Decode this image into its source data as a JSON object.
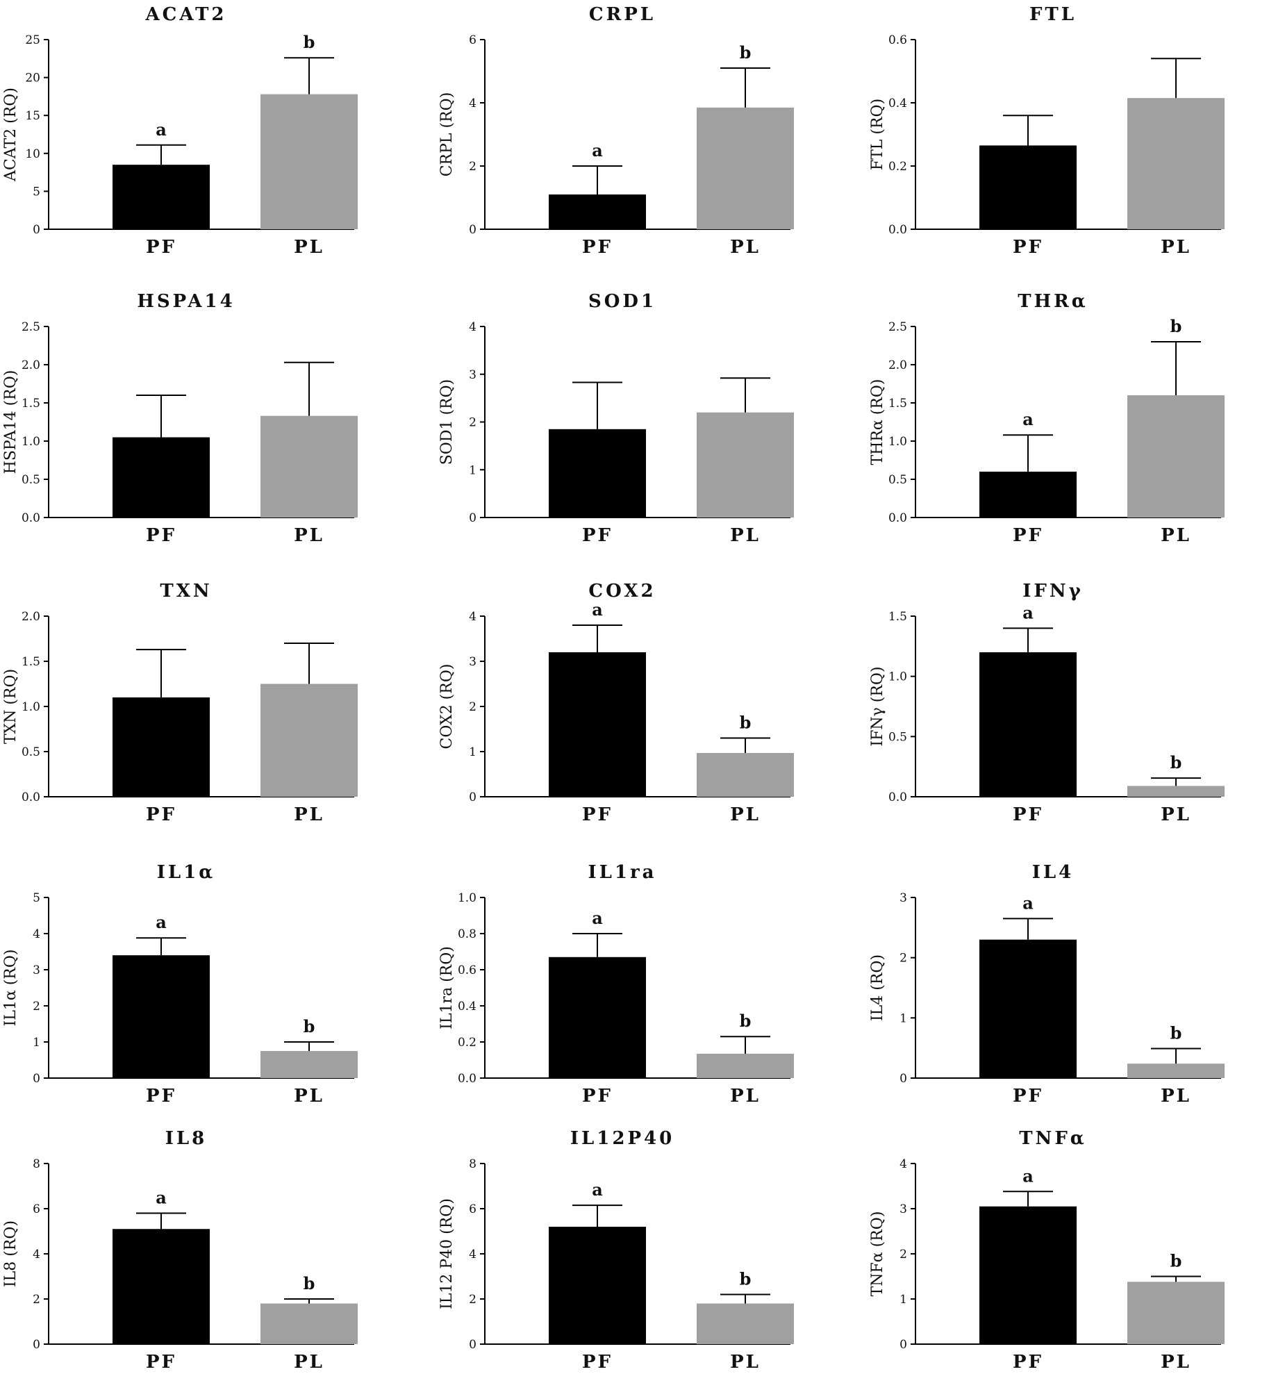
{
  "figure": {
    "colors": {
      "PF": "#000000",
      "PL": "#a0a0a0",
      "axis": "#000000"
    }
  },
  "chart_data": [
    {
      "type": "bar",
      "title": "ACAT2",
      "ylabel": "ACAT2 (RQ)",
      "categories": [
        "PF",
        "PL"
      ],
      "values": [
        8.5,
        17.8
      ],
      "errors": [
        2.6,
        4.8
      ],
      "significance": [
        "a",
        "b"
      ],
      "ylim": [
        0,
        25
      ],
      "yticks": [
        "0",
        "5",
        "10",
        "15",
        "20",
        "25"
      ]
    },
    {
      "type": "bar",
      "title": "CRPL",
      "ylabel": "CRPL (RQ)",
      "categories": [
        "PF",
        "PL"
      ],
      "values": [
        1.1,
        3.85
      ],
      "errors": [
        0.9,
        1.25
      ],
      "significance": [
        "a",
        "b"
      ],
      "ylim": [
        0,
        6
      ],
      "yticks": [
        "0",
        "2",
        "4",
        "6"
      ]
    },
    {
      "type": "bar",
      "title": "FTL",
      "ylabel": "FTL (RQ)",
      "categories": [
        "PF",
        "PL"
      ],
      "values": [
        0.265,
        0.415
      ],
      "errors": [
        0.095,
        0.125
      ],
      "significance": [
        "",
        ""
      ],
      "ylim": [
        0,
        0.6
      ],
      "yticks": [
        "0.0",
        "0.2",
        "0.4",
        "0.6"
      ]
    },
    {
      "type": "bar",
      "title": "HSPA14",
      "ylabel": "HSPA14 (RQ)",
      "categories": [
        "PF",
        "PL"
      ],
      "values": [
        1.05,
        1.33
      ],
      "errors": [
        0.55,
        0.7
      ],
      "significance": [
        "",
        ""
      ],
      "ylim": [
        0,
        2.5
      ],
      "yticks": [
        "0.0",
        "0.5",
        "1.0",
        "1.5",
        "2.0",
        "2.5"
      ]
    },
    {
      "type": "bar",
      "title": "SOD1",
      "ylabel": "SOD1 (RQ)",
      "categories": [
        "PF",
        "PL"
      ],
      "values": [
        1.85,
        2.2
      ],
      "errors": [
        0.98,
        0.72
      ],
      "significance": [
        "",
        ""
      ],
      "ylim": [
        0,
        4
      ],
      "yticks": [
        "0",
        "1",
        "2",
        "3",
        "4"
      ]
    },
    {
      "type": "bar",
      "title": "THRα",
      "ylabel": "THRα (RQ)",
      "categories": [
        "PF",
        "PL"
      ],
      "values": [
        0.6,
        1.6
      ],
      "errors": [
        0.48,
        0.7
      ],
      "significance": [
        "a",
        "b"
      ],
      "ylim": [
        0,
        2.5
      ],
      "yticks": [
        "0.0",
        "0.5",
        "1.0",
        "1.5",
        "2.0",
        "2.5"
      ]
    },
    {
      "type": "bar",
      "title": "TXN",
      "ylabel": "TXN (RQ)",
      "categories": [
        "PF",
        "PL"
      ],
      "values": [
        1.1,
        1.25
      ],
      "errors": [
        0.53,
        0.45
      ],
      "significance": [
        "",
        ""
      ],
      "ylim": [
        0,
        2.0
      ],
      "yticks": [
        "0.0",
        "0.5",
        "1.0",
        "1.5",
        "2.0"
      ]
    },
    {
      "type": "bar",
      "title": "COX2",
      "ylabel": "COX2 (RQ)",
      "categories": [
        "PF",
        "PL"
      ],
      "values": [
        3.2,
        0.97
      ],
      "errors": [
        0.6,
        0.33
      ],
      "significance": [
        "a",
        "b"
      ],
      "ylim": [
        0,
        4
      ],
      "yticks": [
        "0",
        "1",
        "2",
        "3",
        "4"
      ]
    },
    {
      "type": "bar",
      "title": "IFNγ",
      "ylabel": "IFNγ (RQ)",
      "categories": [
        "PF",
        "PL"
      ],
      "values": [
        1.2,
        0.09
      ],
      "errors": [
        0.2,
        0.065
      ],
      "significance": [
        "a",
        "b"
      ],
      "ylim": [
        0,
        1.5
      ],
      "yticks": [
        "0.0",
        "0.5",
        "1.0",
        "1.5"
      ]
    },
    {
      "type": "bar",
      "title": "IL1α",
      "ylabel": "IL1α (RQ)",
      "categories": [
        "PF",
        "PL"
      ],
      "values": [
        3.4,
        0.75
      ],
      "errors": [
        0.48,
        0.25
      ],
      "significance": [
        "a",
        "b"
      ],
      "ylim": [
        0,
        5
      ],
      "yticks": [
        "0",
        "1",
        "2",
        "3",
        "4",
        "5"
      ]
    },
    {
      "type": "bar",
      "title": "IL1ra",
      "ylabel": "IL1ra (RQ)",
      "categories": [
        "PF",
        "PL"
      ],
      "values": [
        0.67,
        0.135
      ],
      "errors": [
        0.13,
        0.095
      ],
      "significance": [
        "a",
        "b"
      ],
      "ylim": [
        0,
        1.0
      ],
      "yticks": [
        "0.0",
        "0.2",
        "0.4",
        "0.6",
        "0.8",
        "1.0"
      ]
    },
    {
      "type": "bar",
      "title": "IL4",
      "ylabel": "IL4 (RQ)",
      "categories": [
        "PF",
        "PL"
      ],
      "values": [
        2.3,
        0.24
      ],
      "errors": [
        0.35,
        0.25
      ],
      "significance": [
        "a",
        "b"
      ],
      "ylim": [
        0,
        3
      ],
      "yticks": [
        "0",
        "1",
        "2",
        "3"
      ]
    },
    {
      "type": "bar",
      "title": "IL8",
      "ylabel": "IL8 (RQ)",
      "categories": [
        "PF",
        "PL"
      ],
      "values": [
        5.1,
        1.8
      ],
      "errors": [
        0.7,
        0.2
      ],
      "significance": [
        "a",
        "b"
      ],
      "ylim": [
        0,
        8
      ],
      "yticks": [
        "0",
        "2",
        "4",
        "6",
        "8"
      ]
    },
    {
      "type": "bar",
      "title": "IL12P40",
      "ylabel": "IL12 P40 (RQ)",
      "categories": [
        "PF",
        "PL"
      ],
      "values": [
        5.2,
        1.8
      ],
      "errors": [
        0.95,
        0.4
      ],
      "significance": [
        "a",
        "b"
      ],
      "ylim": [
        0,
        8
      ],
      "yticks": [
        "0",
        "2",
        "4",
        "6",
        "8"
      ]
    },
    {
      "type": "bar",
      "title": "TNFα",
      "ylabel": "TNFα (RQ)",
      "categories": [
        "PF",
        "PL"
      ],
      "values": [
        3.05,
        1.38
      ],
      "errors": [
        0.33,
        0.12
      ],
      "significance": [
        "a",
        "b"
      ],
      "ylim": [
        0,
        4
      ],
      "yticks": [
        "0",
        "1",
        "2",
        "3",
        "4"
      ]
    }
  ]
}
